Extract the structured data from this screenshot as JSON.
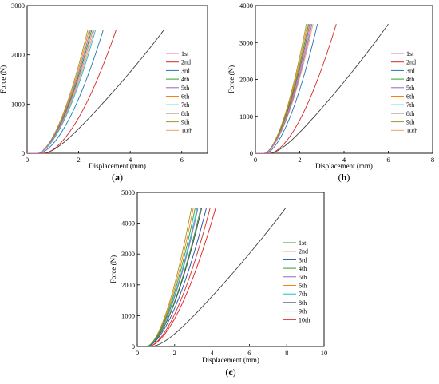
{
  "chart_data": [
    {
      "type": "line",
      "panel": {
        "open": "(",
        "letter": "a",
        "close": ")"
      },
      "xlabel": "Displacement (mm)",
      "ylabel": "Force (N)",
      "xlim": [
        0,
        7
      ],
      "ylim": [
        0,
        3000
      ],
      "xticks": [
        0,
        2,
        4,
        6
      ],
      "yticks": [
        0,
        1000,
        2000,
        3000
      ],
      "legend_position": "right",
      "series": [
        {
          "name": "1st",
          "color": "#e377c2",
          "onset": 0.4,
          "x_end": 2.55,
          "y_end": 2500
        },
        {
          "name": "2nd",
          "color": "#d62728",
          "onset": 0.65,
          "x_end": 3.45,
          "y_end": 2500
        },
        {
          "name": "3rd",
          "color": "#1f77b4",
          "onset": 0.45,
          "x_end": 2.95,
          "y_end": 2500
        },
        {
          "name": "4th",
          "color": "#2ca02c",
          "onset": 0.4,
          "x_end": 2.5,
          "y_end": 2500
        },
        {
          "name": "5th",
          "color": "#9467bd",
          "onset": 0.4,
          "x_end": 2.45,
          "y_end": 2500
        },
        {
          "name": "6th",
          "color": "#ff7f0e",
          "onset": 0.4,
          "x_end": 2.4,
          "y_end": 2500
        },
        {
          "name": "7th",
          "color": "#17becf",
          "onset": 0.4,
          "x_end": 2.65,
          "y_end": 2500
        },
        {
          "name": "8th",
          "color": "#8c564b",
          "onset": 0.4,
          "x_end": 2.5,
          "y_end": 2500
        },
        {
          "name": "9th",
          "color": "#9a9a2a",
          "onset": 0.4,
          "x_end": 2.35,
          "y_end": 2500
        },
        {
          "name": "10th",
          "color": "#f0a060",
          "onset": 0.4,
          "x_end": 2.6,
          "y_end": 2500
        },
        {
          "name": "",
          "color": "#404040",
          "onset": 0.6,
          "x_end": 5.3,
          "y_end": 2500,
          "mode": "linear"
        }
      ]
    },
    {
      "type": "line",
      "panel": {
        "open": "(",
        "letter": "b",
        "close": ")"
      },
      "xlabel": "Displacement (mm)",
      "ylabel": "Force (N)",
      "xlim": [
        0,
        8
      ],
      "ylim": [
        0,
        4000
      ],
      "xticks": [
        0,
        2,
        4,
        6,
        8
      ],
      "yticks": [
        0,
        1000,
        2000,
        3000,
        4000
      ],
      "legend_position": "right",
      "series": [
        {
          "name": "1st",
          "color": "#e377c2",
          "onset": 0.4,
          "x_end": 2.5,
          "y_end": 3500
        },
        {
          "name": "2nd",
          "color": "#d62728",
          "onset": 0.65,
          "x_end": 3.65,
          "y_end": 3500
        },
        {
          "name": "3rd",
          "color": "#1f77b4",
          "onset": 0.45,
          "x_end": 2.8,
          "y_end": 3500
        },
        {
          "name": "4th",
          "color": "#2ca02c",
          "onset": 0.4,
          "x_end": 2.4,
          "y_end": 3500
        },
        {
          "name": "5th",
          "color": "#9467bd",
          "onset": 0.4,
          "x_end": 2.55,
          "y_end": 3500
        },
        {
          "name": "6th",
          "color": "#ff7f0e",
          "onset": 0.4,
          "x_end": 2.35,
          "y_end": 3500
        },
        {
          "name": "7th",
          "color": "#17becf",
          "onset": 0.4,
          "x_end": 2.5,
          "y_end": 3500
        },
        {
          "name": "8th",
          "color": "#8c564b",
          "onset": 0.4,
          "x_end": 2.45,
          "y_end": 3500
        },
        {
          "name": "9th",
          "color": "#9a9a2a",
          "onset": 0.4,
          "x_end": 2.3,
          "y_end": 3500
        },
        {
          "name": "10th",
          "color": "#f0a060",
          "onset": 0.4,
          "x_end": 2.6,
          "y_end": 3500
        },
        {
          "name": "",
          "color": "#404040",
          "onset": 0.6,
          "x_end": 6.0,
          "y_end": 3500,
          "mode": "linear"
        }
      ]
    },
    {
      "type": "line",
      "panel": {
        "open": "(",
        "letter": "c",
        "close": ")"
      },
      "xlabel": "Displacement (mm)",
      "ylabel": "Force (N)",
      "xlim": [
        0,
        10
      ],
      "ylim": [
        0,
        5000
      ],
      "xticks": [
        0,
        2,
        4,
        6,
        8,
        10
      ],
      "yticks": [
        0,
        1000,
        2000,
        3000,
        4000,
        5000
      ],
      "legend_position": "right",
      "series": [
        {
          "name": "1st",
          "color": "#2ca02c",
          "onset": 0.5,
          "x_end": 3.1,
          "y_end": 4500
        },
        {
          "name": "2nd",
          "color": "#d62728",
          "onset": 0.6,
          "x_end": 3.9,
          "y_end": 4500
        },
        {
          "name": "3rd",
          "color": "#1f4ea8",
          "onset": 0.5,
          "x_end": 3.7,
          "y_end": 4500
        },
        {
          "name": "4th",
          "color": "#2ca02c",
          "onset": 0.5,
          "x_end": 3.4,
          "y_end": 4500
        },
        {
          "name": "5th",
          "color": "#9467bd",
          "onset": 0.5,
          "x_end": 3.25,
          "y_end": 4500
        },
        {
          "name": "6th",
          "color": "#ff7f0e",
          "onset": 0.5,
          "x_end": 3.0,
          "y_end": 4500
        },
        {
          "name": "7th",
          "color": "#17becf",
          "onset": 0.5,
          "x_end": 3.2,
          "y_end": 4500
        },
        {
          "name": "8th",
          "color": "#404060",
          "onset": 0.5,
          "x_end": 3.45,
          "y_end": 4500
        },
        {
          "name": "9th",
          "color": "#9a9a2a",
          "onset": 0.5,
          "x_end": 2.9,
          "y_end": 4500
        },
        {
          "name": "10th",
          "color": "#e8151b",
          "onset": 0.6,
          "x_end": 4.2,
          "y_end": 4500
        },
        {
          "name": "",
          "color": "#404040",
          "onset": 0.7,
          "x_end": 7.95,
          "y_end": 4500,
          "mode": "linear"
        }
      ]
    }
  ]
}
